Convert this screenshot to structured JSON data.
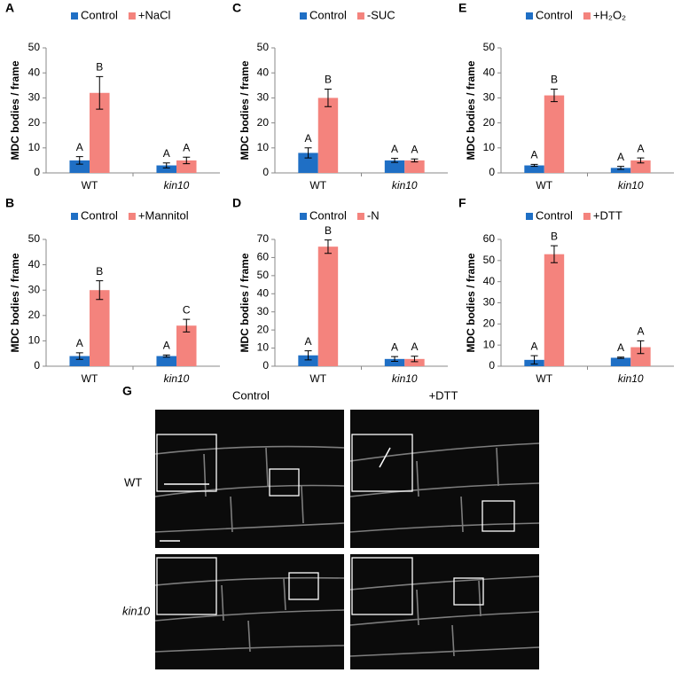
{
  "chart_data": [
    {
      "type": "bar",
      "panel_label": "A",
      "ylabel": "MDC bodies / frame",
      "categories": [
        "WT",
        "kin10"
      ],
      "series": [
        {
          "name": "Control",
          "color": "#1f6fc5",
          "values": [
            5,
            3
          ],
          "errors": [
            1.5,
            1
          ],
          "letters": [
            "A",
            "A"
          ]
        },
        {
          "name": "+NaCl",
          "color": "#f4837d",
          "values": [
            32,
            5
          ],
          "errors": [
            6.5,
            1.3
          ],
          "letters": [
            "B",
            "A"
          ]
        }
      ],
      "ylim": [
        0,
        50
      ],
      "yticks": [
        0,
        10,
        20,
        30,
        40,
        50
      ]
    },
    {
      "type": "bar",
      "panel_label": "B",
      "ylabel": "MDC bodies / frame",
      "categories": [
        "WT",
        "kin10"
      ],
      "series": [
        {
          "name": "Control",
          "color": "#1f6fc5",
          "values": [
            4,
            4
          ],
          "errors": [
            1.3,
            0.4
          ],
          "letters": [
            "A",
            "A"
          ]
        },
        {
          "name": "+Mannitol",
          "color": "#f4837d",
          "values": [
            30,
            16
          ],
          "errors": [
            3.7,
            2.5
          ],
          "letters": [
            "B",
            "C"
          ]
        }
      ],
      "ylim": [
        0,
        50
      ],
      "yticks": [
        0,
        10,
        20,
        30,
        40,
        50
      ]
    },
    {
      "type": "bar",
      "panel_label": "C",
      "ylabel": "MDC bodies / frame",
      "categories": [
        "WT",
        "kin10"
      ],
      "series": [
        {
          "name": "Control",
          "color": "#1f6fc5",
          "values": [
            8,
            5
          ],
          "errors": [
            2,
            0.8
          ],
          "letters": [
            "A",
            "A"
          ]
        },
        {
          "name": "-SUC",
          "color": "#f4837d",
          "values": [
            30,
            5
          ],
          "errors": [
            3.5,
            0.6
          ],
          "letters": [
            "B",
            "A"
          ]
        }
      ],
      "ylim": [
        0,
        50
      ],
      "yticks": [
        0,
        10,
        20,
        30,
        40,
        50
      ]
    },
    {
      "type": "bar",
      "panel_label": "D",
      "ylabel": "MDC bodies / frame",
      "categories": [
        "WT",
        "kin10"
      ],
      "series": [
        {
          "name": "Control",
          "color": "#1f6fc5",
          "values": [
            6,
            4
          ],
          "errors": [
            2.5,
            1.3
          ],
          "letters": [
            "A",
            "A"
          ]
        },
        {
          "name": "-N",
          "color": "#f4837d",
          "values": [
            66,
            4
          ],
          "errors": [
            3.7,
            1.5
          ],
          "letters": [
            "B",
            "A"
          ]
        }
      ],
      "ylim": [
        0,
        70
      ],
      "yticks": [
        0,
        10,
        20,
        30,
        40,
        50,
        60,
        70
      ]
    },
    {
      "type": "bar",
      "panel_label": "E",
      "ylabel": "MDC bodies / frame",
      "categories": [
        "WT",
        "kin10"
      ],
      "series": [
        {
          "name": "Control",
          "color": "#1f6fc5",
          "values": [
            3,
            2
          ],
          "errors": [
            0.4,
            0.6
          ],
          "letters": [
            "A",
            "A"
          ]
        },
        {
          "name": "+H₂O₂",
          "color": "#f4837d",
          "values": [
            31,
            5
          ],
          "errors": [
            2.5,
            1
          ],
          "letters": [
            "B",
            "A"
          ]
        }
      ],
      "ylim": [
        0,
        50
      ],
      "yticks": [
        0,
        10,
        20,
        30,
        40,
        50
      ]
    },
    {
      "type": "bar",
      "panel_label": "F",
      "ylabel": "MDC bodies / frame",
      "categories": [
        "WT",
        "kin10"
      ],
      "series": [
        {
          "name": "Control",
          "color": "#1f6fc5",
          "values": [
            3,
            4
          ],
          "errors": [
            2,
            0.3
          ],
          "letters": [
            "A",
            "A"
          ]
        },
        {
          "name": "+DTT",
          "color": "#f4837d",
          "values": [
            53,
            9
          ],
          "errors": [
            4,
            3
          ],
          "letters": [
            "B",
            "A"
          ]
        }
      ],
      "ylim": [
        0,
        60
      ],
      "yticks": [
        0,
        10,
        20,
        30,
        40,
        50,
        60
      ]
    }
  ],
  "panel_g": {
    "label": "G",
    "columns": [
      "Control",
      "+DTT"
    ],
    "rows": [
      "WT",
      "kin10"
    ]
  }
}
